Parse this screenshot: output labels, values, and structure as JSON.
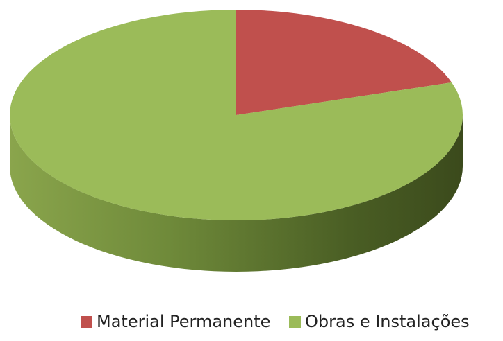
{
  "chart_data": {
    "type": "pie3d",
    "series": [
      {
        "name": "Material Permanente",
        "color": "#c0504d",
        "values": [
          20
        ]
      },
      {
        "name": "Obras e Instalações",
        "color": "#9bbb59",
        "values": [
          80
        ]
      }
    ],
    "legend": "bottom"
  }
}
